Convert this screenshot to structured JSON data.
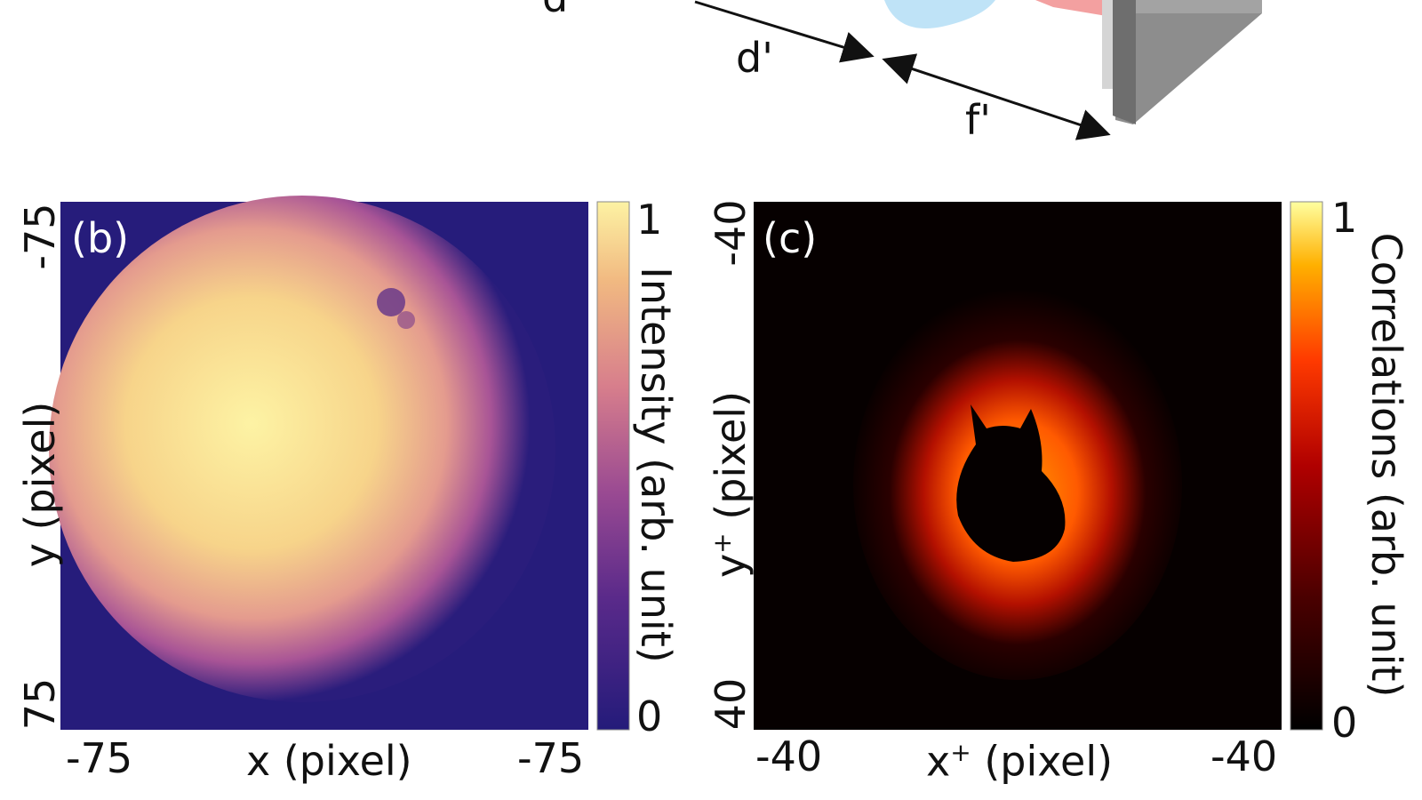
{
  "setup": {
    "distance_label_1": "d'",
    "distance_label_2": "f'",
    "partial_label": "d"
  },
  "panel_b": {
    "label": "(b)",
    "x_axis": {
      "title": "x (pixel)",
      "tick_left": "-75",
      "tick_right": "-75"
    },
    "y_axis": {
      "title": "y (pixel)",
      "tick_top": "-75",
      "tick_bottom": "75"
    },
    "colorbar": {
      "title": "Intensity (arb. unit)",
      "max_label": "1",
      "min_label": "0",
      "colors": [
        "#241b7a",
        "#5a2a8a",
        "#9a4a92",
        "#d77e8c",
        "#f1b981",
        "#fdf2a3"
      ]
    }
  },
  "panel_c": {
    "label": "(c)",
    "x_axis": {
      "title_main": "x",
      "title_sup": "+",
      "title_rest": " (pixel)",
      "tick_left": "-40",
      "tick_right": "-40"
    },
    "y_axis": {
      "title_main": "y",
      "title_sup": "+",
      "title_rest": " (pixel)",
      "tick_top": "-40",
      "tick_bottom": "40"
    },
    "colorbar": {
      "title": "Correlations (arb. unit)",
      "max_label": "1",
      "min_label": "0",
      "colors": [
        "#000000",
        "#4a0000",
        "#b00000",
        "#ff3a00",
        "#ffb000",
        "#ffffa0"
      ]
    }
  }
}
